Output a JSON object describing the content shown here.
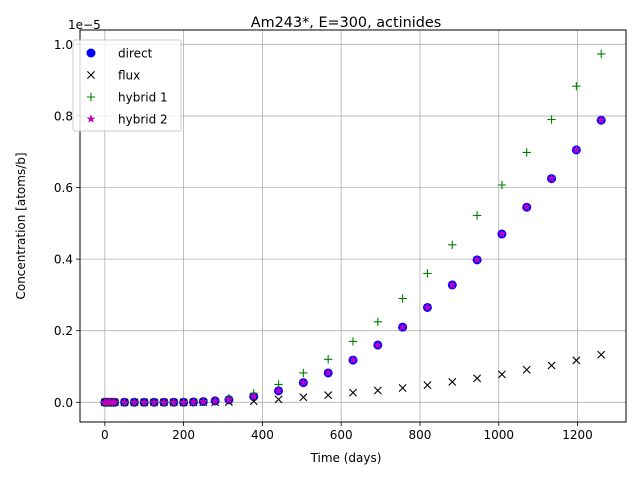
{
  "chart_data": {
    "type": "scatter",
    "title": "Am243*, E=300, actinides",
    "xlabel": "Time (days)",
    "ylabel": "Concentration [atoms/b]",
    "y_multiplier_label": "1e−5",
    "xlim": [
      -63,
      1323
    ],
    "ylim": [
      -0.055,
      1.04
    ],
    "y_scale_exponent": -5,
    "grid": true,
    "legend_position": "upper left",
    "x_ticks": [
      0,
      200,
      400,
      600,
      800,
      1000,
      1200
    ],
    "x_tick_labels": [
      "0",
      "200",
      "400",
      "600",
      "800",
      "1000",
      "1200"
    ],
    "y_ticks": [
      0.0,
      0.2,
      0.4,
      0.6,
      0.8,
      1.0
    ],
    "y_tick_labels": [
      "0.0",
      "0.2",
      "0.4",
      "0.6",
      "0.8",
      "1.0"
    ],
    "x": [
      0,
      5,
      10,
      15,
      20,
      25,
      50,
      75,
      100,
      125,
      150,
      175,
      200,
      225,
      250,
      280,
      315,
      378,
      441,
      504,
      567,
      630,
      693,
      756,
      819,
      882,
      945,
      1008,
      1071,
      1134,
      1197,
      1260
    ],
    "series": [
      {
        "name": "direct",
        "marker": "circle",
        "color": "#0000ff",
        "values": [
          0,
          0,
          0,
          0,
          0,
          0,
          0,
          0,
          0,
          0,
          0,
          0,
          0,
          0.001,
          0.002,
          0.004,
          0.007,
          0.016,
          0.032,
          0.055,
          0.082,
          0.118,
          0.16,
          0.21,
          0.265,
          0.328,
          0.398,
          0.47,
          0.545,
          0.625,
          0.705,
          0.788
        ]
      },
      {
        "name": "flux",
        "marker": "x",
        "color": "#000000",
        "values": [
          0,
          0,
          0,
          0,
          0,
          0,
          0,
          0,
          0,
          0,
          0,
          0,
          0,
          0,
          0,
          0,
          0.001,
          0.003,
          0.008,
          0.014,
          0.02,
          0.027,
          0.033,
          0.04,
          0.048,
          0.057,
          0.067,
          0.078,
          0.091,
          0.103,
          0.117,
          0.133
        ]
      },
      {
        "name": "hybrid 1",
        "marker": "plus",
        "color": "#008000",
        "values": [
          0,
          0,
          0,
          0,
          0,
          0,
          0,
          0,
          0,
          0,
          0,
          0,
          0,
          0.002,
          0.003,
          0.006,
          0.012,
          0.025,
          0.05,
          0.082,
          0.12,
          0.17,
          0.225,
          0.29,
          0.36,
          0.44,
          0.522,
          0.607,
          0.698,
          0.79,
          0.883,
          0.973
        ]
      },
      {
        "name": "hybrid 2",
        "marker": "star",
        "color": "#bf00bf",
        "values": [
          0,
          0,
          0,
          0,
          0,
          0,
          0,
          0,
          0,
          0,
          0,
          0,
          0,
          0.001,
          0.002,
          0.004,
          0.007,
          0.016,
          0.032,
          0.055,
          0.082,
          0.118,
          0.16,
          0.21,
          0.265,
          0.328,
          0.398,
          0.47,
          0.545,
          0.625,
          0.705,
          0.788
        ]
      }
    ]
  }
}
